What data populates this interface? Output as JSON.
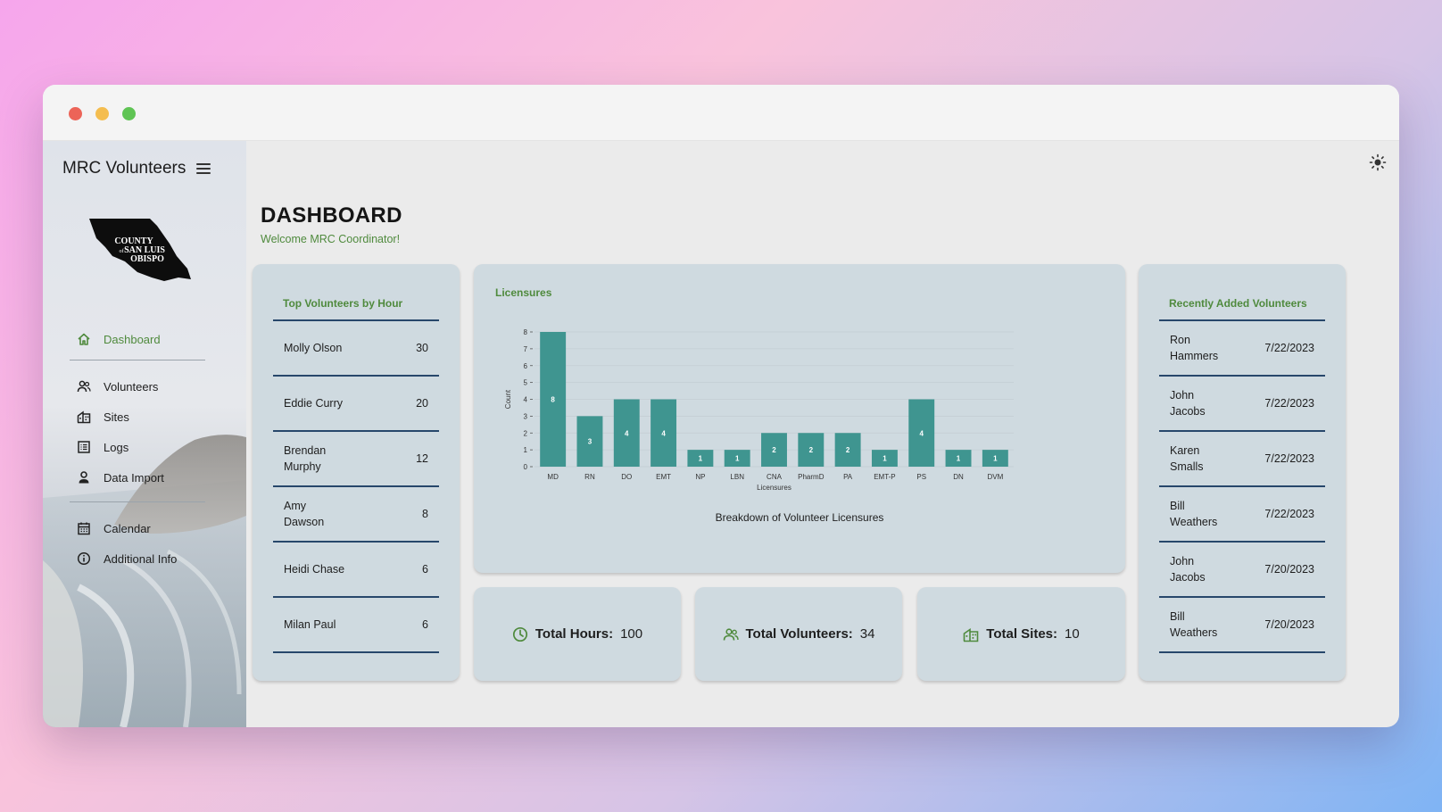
{
  "window": {
    "traffic_lights": [
      "close",
      "minimize",
      "maximize"
    ]
  },
  "sidebar": {
    "app_title": "MRC Volunteers",
    "logo_text": [
      "COUNTY",
      "of",
      "SAN LUIS",
      "OBISPO"
    ],
    "nav_primary": [
      {
        "label": "Dashboard",
        "icon": "home-icon",
        "active": true
      },
      {
        "label": "Volunteers",
        "icon": "people-icon"
      },
      {
        "label": "Sites",
        "icon": "building-icon"
      },
      {
        "label": "Logs",
        "icon": "list-icon"
      },
      {
        "label": "Data Import",
        "icon": "person-icon"
      }
    ],
    "nav_secondary": [
      {
        "label": "Calendar",
        "icon": "calendar-icon"
      },
      {
        "label": "Additional Info",
        "icon": "info-icon"
      }
    ]
  },
  "header": {
    "title": "DASHBOARD",
    "welcome": "Welcome MRC Coordinator!",
    "theme_toggle_icon": "sun-icon"
  },
  "top_volunteers": {
    "title": "Top Volunteers by Hour",
    "rows": [
      {
        "name": "Molly Olson",
        "value": "30"
      },
      {
        "name": "Eddie Curry",
        "value": "20"
      },
      {
        "name": "Brendan Murphy",
        "value": "12"
      },
      {
        "name": "Amy Dawson",
        "value": "8"
      },
      {
        "name": "Heidi Chase",
        "value": "6"
      },
      {
        "name": "Milan Paul",
        "value": "6"
      }
    ]
  },
  "recent_volunteers": {
    "title": "Recently Added Volunteers",
    "rows": [
      {
        "name": "Ron Hammers",
        "value": "7/22/2023"
      },
      {
        "name": "John Jacobs",
        "value": "7/22/2023"
      },
      {
        "name": "Karen Smalls",
        "value": "7/22/2023"
      },
      {
        "name": "Bill Weathers",
        "value": "7/22/2023"
      },
      {
        "name": "John Jacobs",
        "value": "7/20/2023"
      },
      {
        "name": "Bill Weathers",
        "value": "7/20/2023"
      }
    ]
  },
  "chart_card": {
    "title": "Licensures"
  },
  "chart_data": {
    "type": "bar",
    "title": "",
    "caption": "Breakdown of Volunteer Licensures",
    "xlabel": "Licensures",
    "ylabel": "Count",
    "categories": [
      "MD",
      "RN",
      "DO",
      "EMT",
      "NP",
      "LBN",
      "CNA",
      "PharmD",
      "PA",
      "EMT-P",
      "PS",
      "DN",
      "DVM"
    ],
    "values": [
      8,
      3,
      4,
      4,
      1,
      1,
      2,
      2,
      2,
      1,
      4,
      1,
      1
    ],
    "ylim": [
      0,
      8
    ],
    "yticks": [
      0,
      1,
      2,
      3,
      4,
      5,
      6,
      7,
      8
    ],
    "bar_color": "#3f9590",
    "data_labels": true,
    "grid": true,
    "legend": "none"
  },
  "stats": [
    {
      "label": "Total Hours:",
      "value": "100",
      "icon": "clock-icon"
    },
    {
      "label": "Total Volunteers:",
      "value": "34",
      "icon": "people-icon"
    },
    {
      "label": "Total Sites:",
      "value": "10",
      "icon": "building-icon"
    }
  ],
  "colors": {
    "accent_green": "#4f8a3d",
    "card_bg": "#cfdae0",
    "divider_navy": "#27476b",
    "bar_teal": "#3f9590"
  }
}
